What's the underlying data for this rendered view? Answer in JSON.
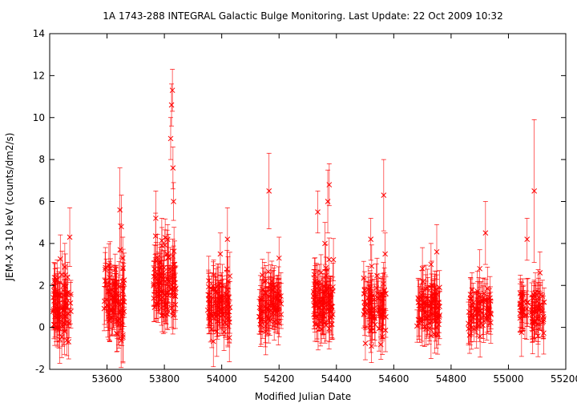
{
  "chart_data": {
    "type": "scatter",
    "title": "1A 1743-288   INTEGRAL Galactic Bulge Monitoring.  Last Update: 22 Oct 2009 10:32",
    "xlabel": "Modified Julian Date",
    "ylabel": "JEM-X 3-10 keV (counts/dm2/s)",
    "xlim": [
      53400,
      55200
    ],
    "ylim": [
      -2,
      14
    ],
    "x_ticks": [
      53600,
      53800,
      54000,
      54200,
      54400,
      54600,
      54800,
      55000,
      55200
    ],
    "y_ticks": [
      -2,
      0,
      2,
      4,
      6,
      8,
      10,
      12,
      14
    ],
    "grid": false,
    "marker": "x",
    "error_bars": true,
    "series_color": "#ff0000",
    "seasons": [
      {
        "x_start": 53412,
        "x_end": 53475,
        "y_center": 1.0,
        "spread": 1.3,
        "err": 0.9,
        "n": 70,
        "peaks": [
          [
            53470,
            4.3,
            1.4
          ],
          [
            53455,
            2.5,
            1.0
          ]
        ]
      },
      {
        "x_start": 53590,
        "x_end": 53660,
        "y_center": 1.2,
        "spread": 1.4,
        "err": 1.0,
        "n": 75,
        "peaks": [
          [
            53645,
            5.6,
            2.0
          ],
          [
            53650,
            4.8,
            1.5
          ],
          [
            53655,
            3.3,
            1.0
          ]
        ]
      },
      {
        "x_start": 53762,
        "x_end": 53840,
        "y_center": 2.0,
        "spread": 1.6,
        "err": 0.9,
        "n": 90,
        "peaks": [
          [
            53828,
            11.3,
            1.0
          ],
          [
            53825,
            10.6,
            1.0
          ],
          [
            53822,
            9.0,
            1.0
          ],
          [
            53830,
            7.6,
            1.0
          ],
          [
            53832,
            6.0,
            0.9
          ],
          [
            53770,
            5.2,
            1.3
          ],
          [
            53835,
            2.3,
            0.8
          ]
        ]
      },
      {
        "x_start": 53950,
        "x_end": 54030,
        "y_center": 1.0,
        "spread": 1.2,
        "err": 1.0,
        "n": 80,
        "peaks": [
          [
            54020,
            4.2,
            1.5
          ],
          [
            53995,
            3.5,
            1.0
          ]
        ]
      },
      {
        "x_start": 54130,
        "x_end": 54210,
        "y_center": 1.1,
        "spread": 1.1,
        "err": 0.9,
        "n": 75,
        "peaks": [
          [
            54165,
            6.5,
            1.8
          ],
          [
            54200,
            3.3,
            1.0
          ]
        ]
      },
      {
        "x_start": 54320,
        "x_end": 54390,
        "y_center": 1.3,
        "spread": 1.3,
        "err": 0.9,
        "n": 80,
        "peaks": [
          [
            54375,
            6.8,
            1.0
          ],
          [
            54370,
            6.0,
            1.5
          ],
          [
            54335,
            5.5,
            1.0
          ],
          [
            54360,
            4.0,
            1.0
          ]
        ]
      },
      {
        "x_start": 54495,
        "x_end": 54575,
        "y_center": 1.0,
        "spread": 1.2,
        "err": 0.9,
        "n": 70,
        "peaks": [
          [
            54565,
            6.3,
            1.7
          ],
          [
            54520,
            4.2,
            1.0
          ],
          [
            54570,
            3.5,
            1.0
          ]
        ]
      },
      {
        "x_start": 54680,
        "x_end": 54760,
        "y_center": 0.9,
        "spread": 1.0,
        "err": 0.9,
        "n": 75,
        "peaks": [
          [
            54730,
            3.0,
            1.0
          ],
          [
            54750,
            3.6,
            1.3
          ],
          [
            54700,
            2.8,
            1.0
          ]
        ]
      },
      {
        "x_start": 54860,
        "x_end": 54940,
        "y_center": 0.7,
        "spread": 0.9,
        "err": 0.8,
        "n": 60,
        "peaks": [
          [
            54920,
            4.5,
            1.5
          ],
          [
            54900,
            2.8,
            0.9
          ]
        ]
      },
      {
        "x_start": 55040,
        "x_end": 55125,
        "y_center": 0.7,
        "spread": 1.0,
        "err": 0.9,
        "n": 65,
        "peaks": [
          [
            55090,
            6.5,
            3.4
          ],
          [
            55065,
            4.2,
            1.0
          ],
          [
            55110,
            2.6,
            1.0
          ]
        ]
      }
    ]
  }
}
